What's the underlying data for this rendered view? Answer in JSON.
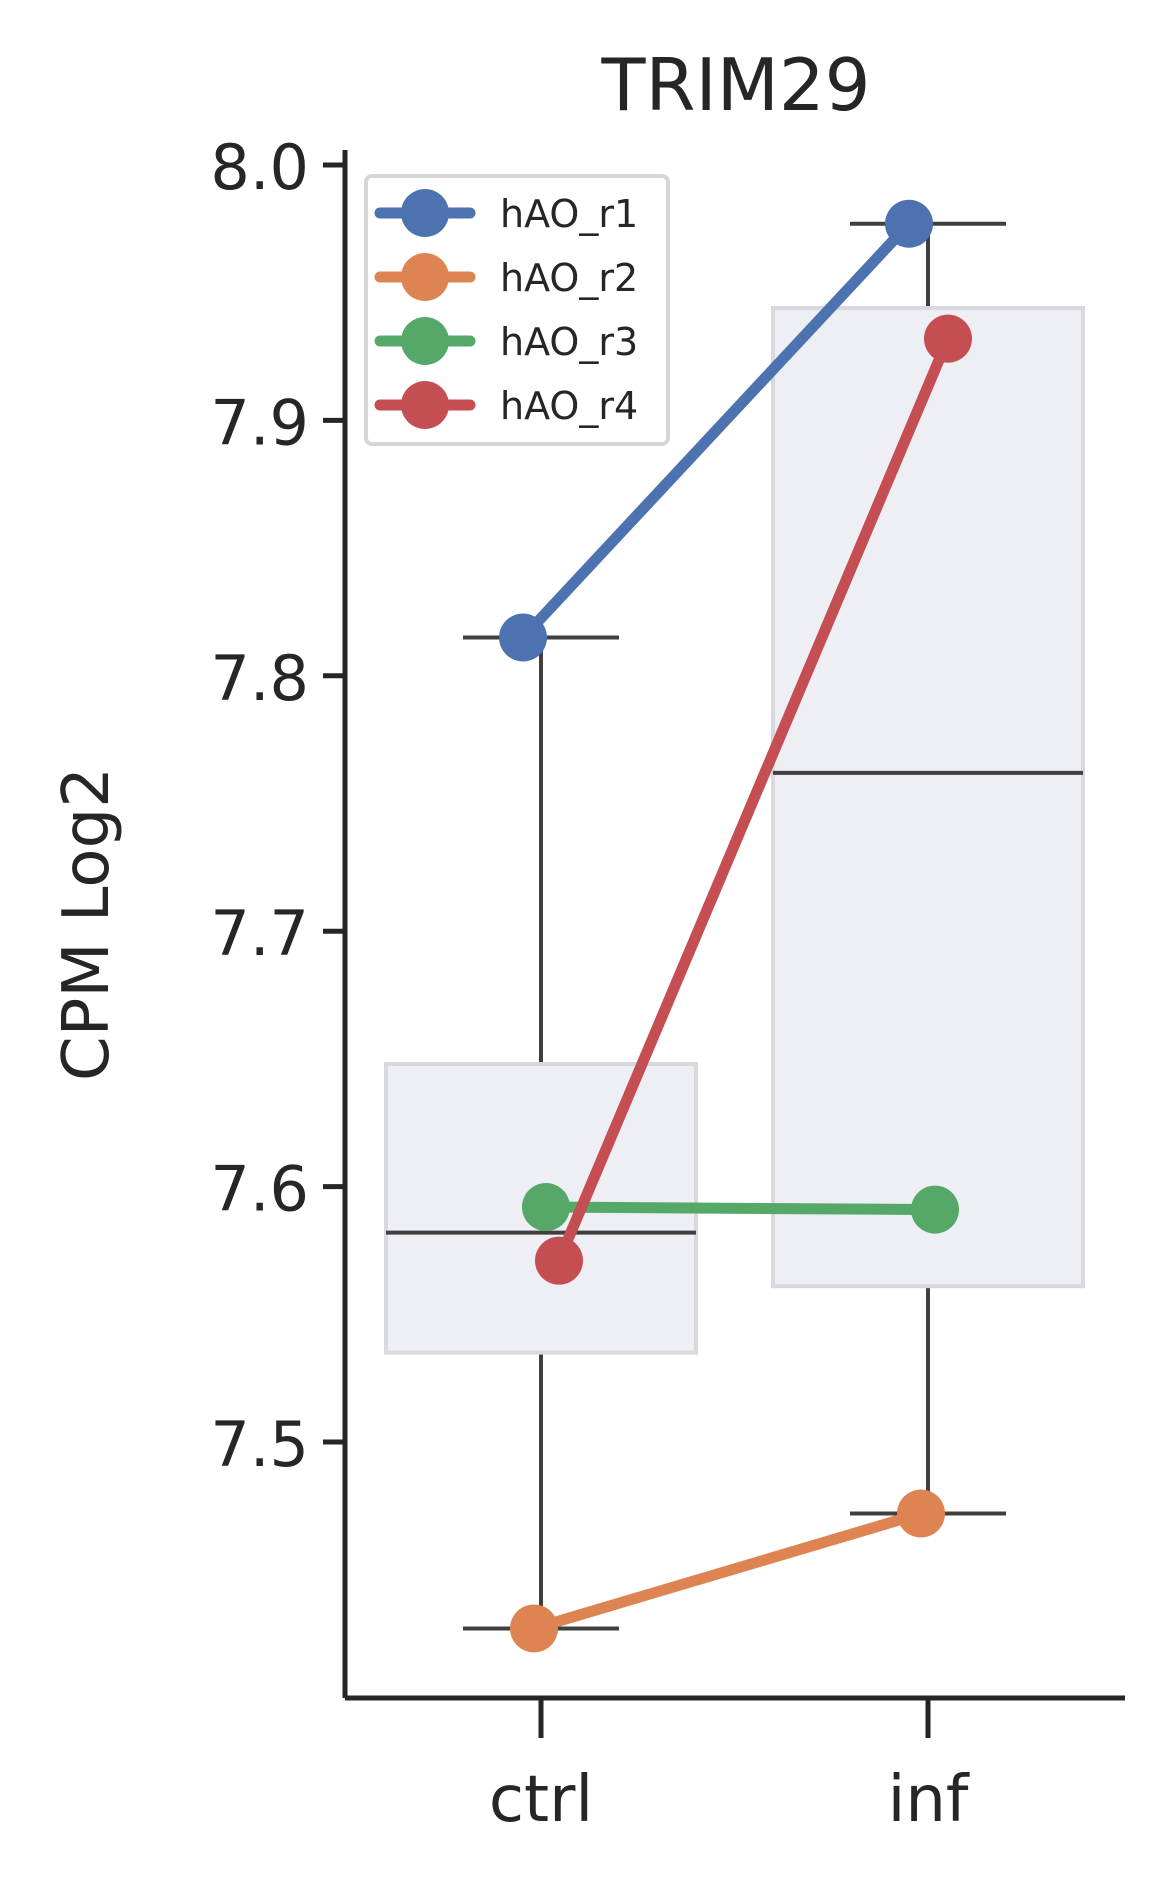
{
  "chart_data": {
    "type": "box",
    "title": "TRIM29",
    "xlabel": "",
    "ylabel": "CPM Log2",
    "categories": [
      "ctrl",
      "inf"
    ],
    "ylim": [
      7.4,
      8.005
    ],
    "yticks": [
      7.5,
      7.6,
      7.7,
      7.8,
      7.9,
      8.0
    ],
    "ytick_labels": [
      "7.5",
      "7.6",
      "7.7",
      "7.8",
      "7.9",
      "8.0"
    ],
    "boxes": [
      {
        "category": "ctrl",
        "whisker_low": 7.427,
        "q1": 7.535,
        "median": 7.582,
        "q3": 7.648,
        "whisker_high": 7.815
      },
      {
        "category": "inf",
        "whisker_low": 7.472,
        "q1": 7.561,
        "median": 7.762,
        "q3": 7.944,
        "whisker_high": 7.977
      }
    ],
    "series": [
      {
        "name": "hAO_r1",
        "color": "#4c72b0",
        "values": [
          7.815,
          7.977
        ]
      },
      {
        "name": "hAO_r2",
        "color": "#dd8452",
        "values": [
          7.427,
          7.472
        ]
      },
      {
        "name": "hAO_r3",
        "color": "#55a868",
        "values": [
          7.592,
          7.591
        ]
      },
      {
        "name": "hAO_r4",
        "color": "#c44e52",
        "values": [
          7.571,
          7.932
        ]
      }
    ],
    "legend_position": "top-left",
    "box_fill": "#eaeaf2",
    "box_line": "#3f3f3f"
  }
}
